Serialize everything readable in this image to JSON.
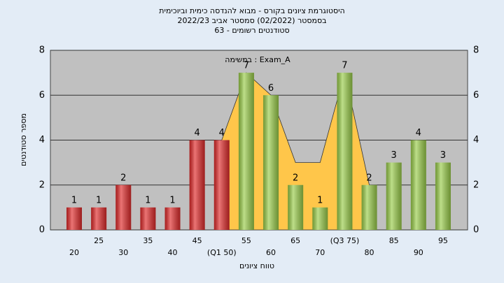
{
  "chart_data": {
    "type": "bar",
    "title": "היסטוגרמת ציונים בקורס - מבוא להנדסה כימית וביוכימית",
    "subtitle": "בסמסטר  (02/2022)  סמסטר אביב 2022/23",
    "subtitle2": "סטודנטים רשומים - 63",
    "annotation": "במשימה : Exam_A",
    "x_label": "טווח ציונים",
    "y_label": "מספר סטודנטים",
    "categories": [
      "20",
      "25",
      "30",
      "35",
      "40",
      "45",
      "(Q1 50)",
      "55",
      "60",
      "65",
      "70",
      "(Q3 75)",
      "80",
      "85",
      "90",
      "95"
    ],
    "values": [
      1,
      1,
      2,
      1,
      1,
      4,
      4,
      7,
      6,
      2,
      1,
      7,
      2,
      3,
      4,
      3
    ],
    "bar_colors": [
      "#e02a2a",
      "#e02a2a",
      "#e02a2a",
      "#e02a2a",
      "#e02a2a",
      "#e02a2a",
      "#e02a2a",
      "#9acd4a",
      "#9acd4a",
      "#9acd4a",
      "#9acd4a",
      "#9acd4a",
      "#9acd4a",
      "#9acd4a",
      "#9acd4a",
      "#9acd4a"
    ],
    "area_values": [
      null,
      null,
      null,
      null,
      null,
      null,
      4,
      7,
      6,
      3,
      3,
      7,
      2,
      null,
      null,
      null
    ],
    "area_color": "#ffc64a",
    "ylim": [
      0,
      8
    ],
    "yticks": [
      0,
      2,
      4,
      6,
      8
    ],
    "grid": true
  }
}
